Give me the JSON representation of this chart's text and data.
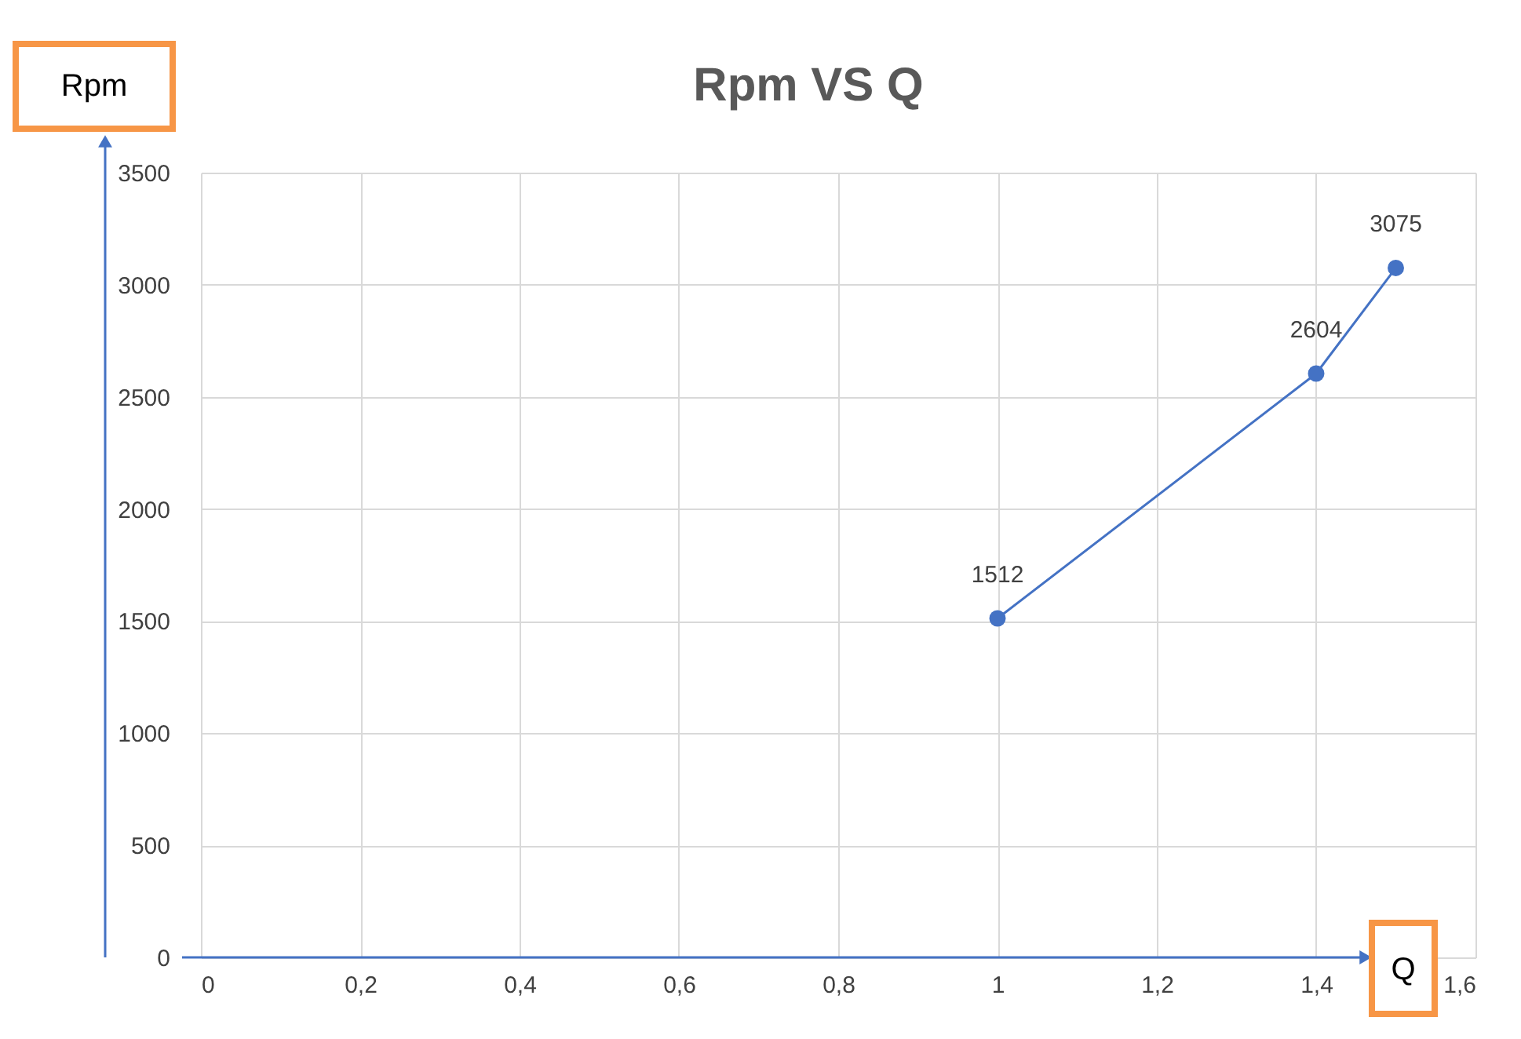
{
  "chart_data": {
    "type": "line",
    "title": "Rpm VS Q",
    "xlabel": "Q",
    "ylabel": "Rpm",
    "x": [
      1,
      1.4,
      1.5
    ],
    "series": [
      {
        "color": "#4472c4",
        "values": [
          1512,
          2604,
          3075
        ]
      }
    ],
    "xlim": [
      0,
      1.6
    ],
    "xticks": [
      0,
      {
        "value": 0.2,
        "label": "0,2"
      },
      {
        "value": 0.4,
        "label": "0,4"
      },
      {
        "value": 0.6,
        "label": "0,6"
      },
      {
        "value": 0.8,
        "label": "0,8"
      },
      1,
      {
        "value": 1.2,
        "label": "1,2"
      },
      {
        "value": 1.4,
        "label": "1,4"
      },
      {
        "value": 1.6,
        "label": "1,6"
      }
    ],
    "ylim": [
      0,
      3500
    ],
    "yticks": [
      0,
      500,
      1000,
      1500,
      2000,
      2500,
      3000,
      3500
    ],
    "grid": true,
    "data_labels": true,
    "marker": "circle",
    "line_style": "solid"
  }
}
